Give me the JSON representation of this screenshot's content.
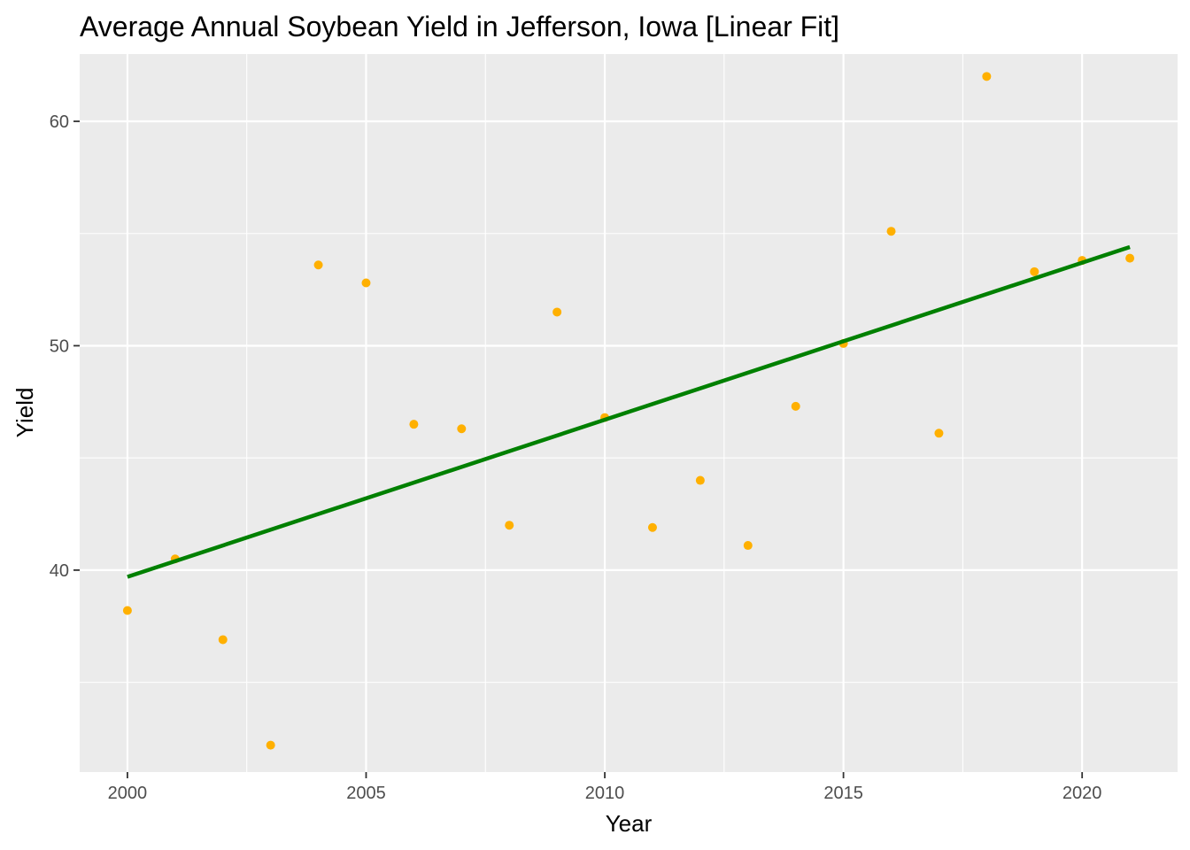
{
  "chart_data": {
    "type": "scatter",
    "title": "Average Annual Soybean Yield in Jefferson, Iowa [Linear Fit]",
    "xlabel": "Year",
    "ylabel": "Yield",
    "xlim": [
      1999,
      2022
    ],
    "ylim": [
      31.0,
      63.0
    ],
    "x_ticks": [
      2000,
      2005,
      2010,
      2015,
      2020
    ],
    "y_ticks": [
      40,
      50,
      60
    ],
    "x_tick_labels": [
      "2000",
      "2005",
      "2010",
      "2015",
      "2020"
    ],
    "y_tick_labels": [
      "40",
      "50",
      "60"
    ],
    "grid": true,
    "legend": "none",
    "colors": {
      "panel_background": "#ebebeb",
      "grid": "#ffffff",
      "points": "#ffb000",
      "fit_line": "#008000",
      "tick_label": "#4d4d4d",
      "tick_mark": "#333333"
    },
    "series": [
      {
        "kind": "points",
        "x": [
          2000,
          2001,
          2002,
          2003,
          2004,
          2005,
          2006,
          2007,
          2008,
          2009,
          2010,
          2011,
          2012,
          2013,
          2014,
          2015,
          2016,
          2017,
          2018,
          2019,
          2020,
          2021
        ],
        "y": [
          38.2,
          40.5,
          36.9,
          32.2,
          53.6,
          52.8,
          46.5,
          46.3,
          42.0,
          51.5,
          46.8,
          41.9,
          44.0,
          41.1,
          47.3,
          50.1,
          55.1,
          46.1,
          62.0,
          53.3,
          53.8,
          53.9
        ]
      },
      {
        "kind": "linear_fit",
        "x": [
          2000,
          2021
        ],
        "y": [
          39.7,
          54.4
        ]
      }
    ]
  }
}
